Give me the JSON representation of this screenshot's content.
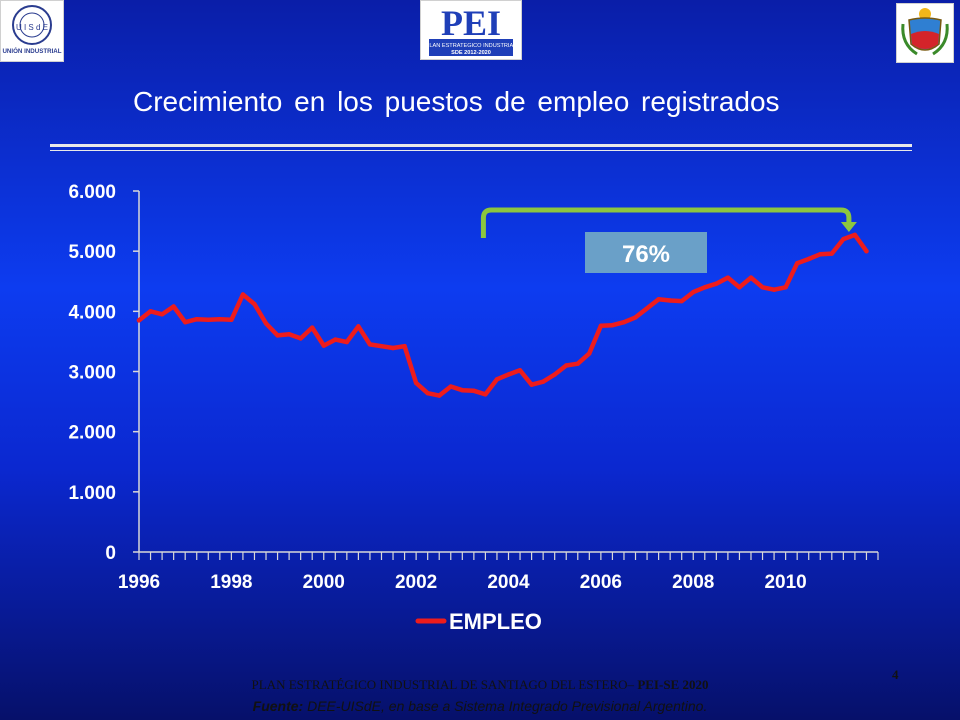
{
  "header": {
    "title": "Crecimiento en los puestos de empleo registrados",
    "logo_left_text": "UNIÓN INDUSTRIAL",
    "logo_left_monogram": "U I S d E",
    "logo_center_text": "PEI",
    "logo_center_subtitle": "PLAN ESTRATEGICO INDUSTRIAL",
    "logo_center_years": "SDE 2012-2020"
  },
  "chart_data": {
    "type": "line",
    "title": "",
    "xlabel": "",
    "ylabel": "",
    "ylim": [
      0,
      6000
    ],
    "y_ticks": [
      "0",
      "1.000",
      "2.000",
      "3.000",
      "4.000",
      "5.000",
      "6.000"
    ],
    "x_ticks": [
      "1996",
      "1998",
      "2000",
      "2002",
      "2004",
      "2006",
      "2008",
      "2010"
    ],
    "legend_position": "bottom",
    "grid": false,
    "series": [
      {
        "name": "EMPLEO",
        "color": "#ee1c1c",
        "x": [
          1996.0,
          1996.25,
          1996.5,
          1996.75,
          1997.0,
          1997.25,
          1997.5,
          1997.75,
          1998.0,
          1998.25,
          1998.5,
          1998.75,
          1999.0,
          1999.25,
          1999.5,
          1999.75,
          2000.0,
          2000.25,
          2000.5,
          2000.75,
          2001.0,
          2001.25,
          2001.5,
          2001.75,
          2002.0,
          2002.25,
          2002.5,
          2002.75,
          2003.0,
          2003.25,
          2003.5,
          2003.75,
          2004.0,
          2004.25,
          2004.5,
          2004.75,
          2005.0,
          2005.25,
          2005.5,
          2005.75,
          2006.0,
          2006.25,
          2006.5,
          2006.75,
          2007.0,
          2007.25,
          2007.5,
          2007.75,
          2008.0,
          2008.25,
          2008.5,
          2008.75,
          2009.0,
          2009.25,
          2009.5,
          2009.75,
          2010.0,
          2010.25,
          2010.5,
          2010.75,
          2011.0,
          2011.25,
          2011.5,
          2011.75
        ],
        "values": [
          3850,
          4000,
          3950,
          4080,
          3820,
          3870,
          3860,
          3870,
          3860,
          4280,
          4120,
          3800,
          3600,
          3620,
          3550,
          3730,
          3430,
          3530,
          3490,
          3750,
          3450,
          3420,
          3390,
          3420,
          2810,
          2640,
          2600,
          2750,
          2690,
          2680,
          2620,
          2870,
          2950,
          3020,
          2780,
          2830,
          2950,
          3100,
          3130,
          3300,
          3760,
          3770,
          3820,
          3900,
          4050,
          4200,
          4180,
          4170,
          4320,
          4400,
          4460,
          4560,
          4400,
          4560,
          4400,
          4360,
          4400,
          4800,
          4870,
          4950,
          4960,
          5200,
          5270,
          5000
        ]
      }
    ],
    "annotation": {
      "label": "76%",
      "from_x": 2003.5,
      "to_x": 2011.5,
      "color": "#8cc63f"
    }
  },
  "footer": {
    "plan_text": "PLAN ESTRATÉGICO INDUSTRIAL  DE SANTIAGO DEL ESTERO– ",
    "plan_bold": "PEI-SE 2020",
    "page_number": "4",
    "source_lead": "Fuente:",
    "source_text": " DEE-UISdE, en base a Sistema Integrado Previsional Argentino."
  }
}
